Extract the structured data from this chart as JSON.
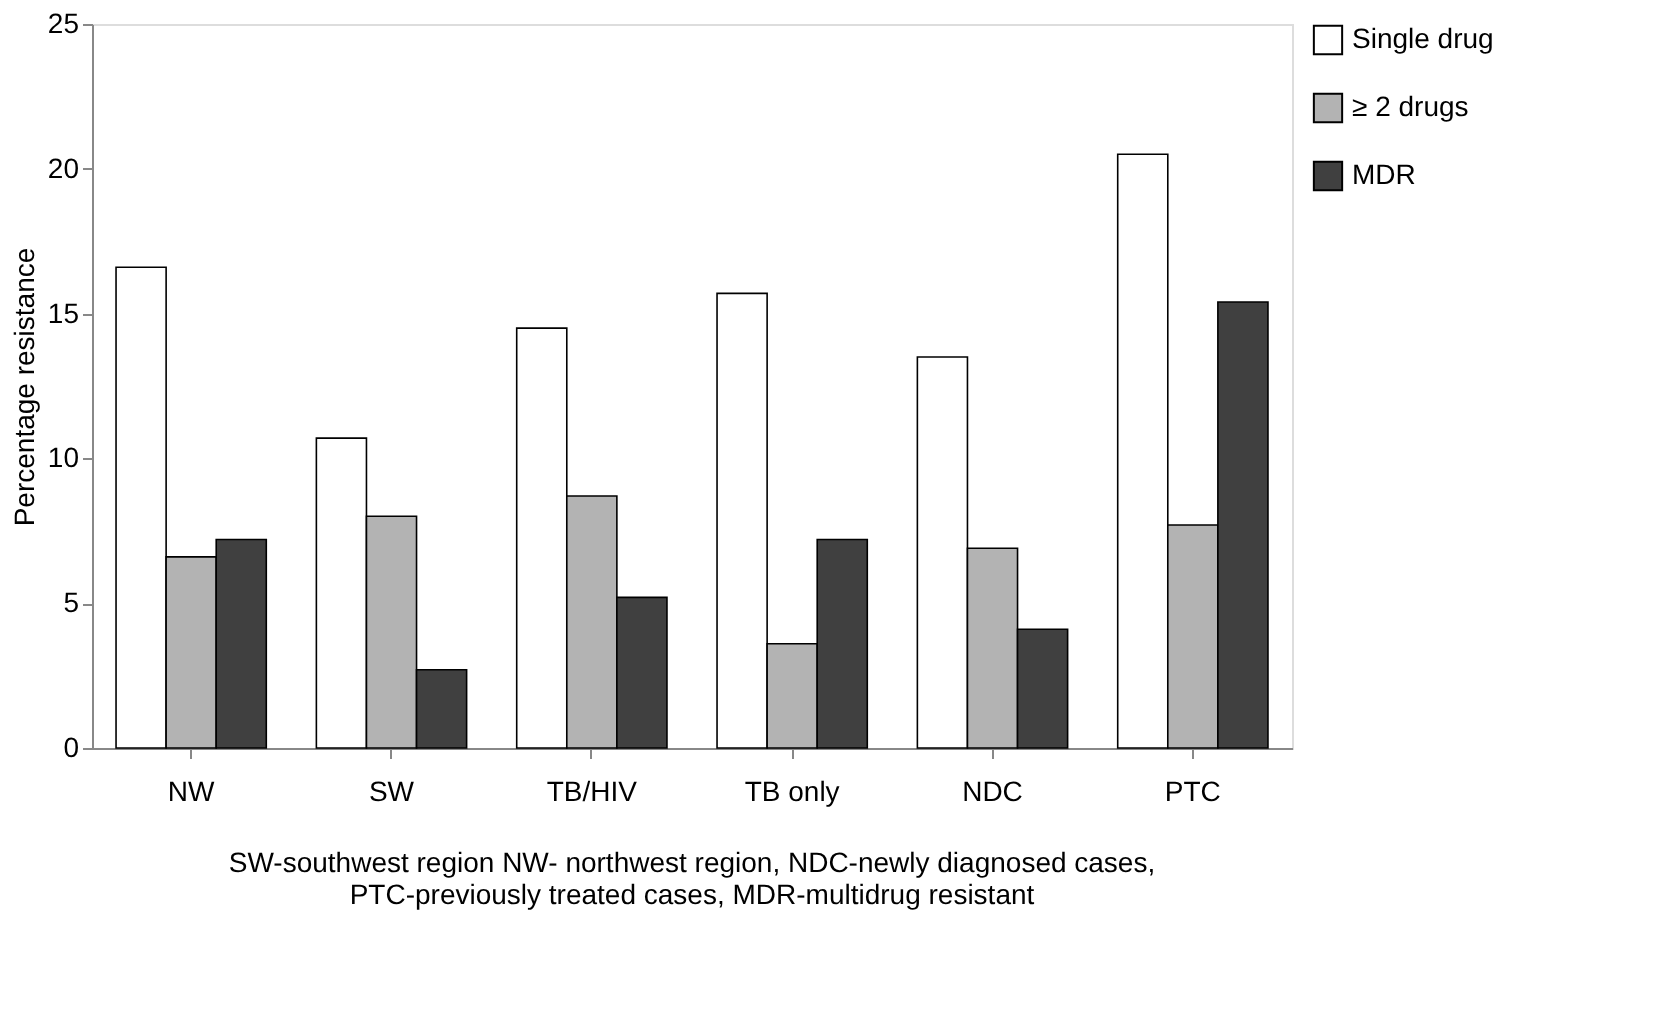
{
  "chart_data": {
    "type": "bar",
    "ylabel": "Percentage resistance",
    "categories": [
      "NW",
      "SW",
      "TB/HIV",
      "TB only",
      "NDC",
      "PTC"
    ],
    "series": [
      {
        "name": "Single drug",
        "color": "#ffffff",
        "values": [
          16.6,
          10.7,
          14.5,
          15.7,
          13.5,
          20.5
        ]
      },
      {
        "name": "≥ 2 drugs",
        "color": "#b3b3b3",
        "values": [
          6.6,
          8.0,
          8.7,
          3.6,
          6.9,
          7.7
        ]
      },
      {
        "name": "MDR",
        "color": "#404040",
        "values": [
          7.2,
          2.7,
          5.2,
          7.2,
          4.1,
          15.4
        ]
      }
    ],
    "ylim": [
      0,
      25
    ],
    "yticks": [
      0,
      5,
      10,
      15,
      20,
      25
    ],
    "grid": false,
    "legend": "top right",
    "annotations": [
      "SW-southwest region  NW- northwest region, NDC-newly diagnosed cases,",
      "PTC-previously treated cases, MDR-multidrug resistant"
    ]
  }
}
